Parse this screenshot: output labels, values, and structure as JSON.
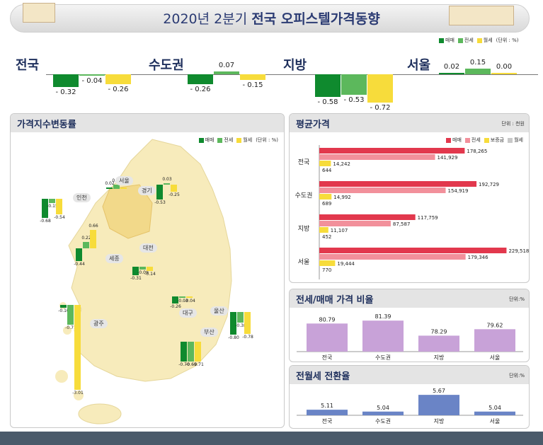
{
  "header": {
    "title_prefix": "2020년 2분기 ",
    "title_bold": "전국 오피스텔가격동향"
  },
  "legend": {
    "sale": "매매",
    "jeonse": "전세",
    "wolse": "월세",
    "unit": "(단위 : %)"
  },
  "colors": {
    "sale": "#0f8a2e",
    "jeonse": "#5cb85c",
    "wolse": "#f7dc3b",
    "avg_sale": "#e2384d",
    "avg_jeonse": "#f2909b",
    "avg_deposit": "#f7dc3b",
    "avg_wolse": "#c8c8c8",
    "ratio": "#c8a2d8",
    "conv": "#6a84c6"
  },
  "summary": [
    {
      "region": "전국",
      "sale": -0.32,
      "jeonse": -0.04,
      "wolse": -0.26,
      "labels": [
        "- 0.32",
        "- 0.04",
        "- 0.26"
      ]
    },
    {
      "region": "수도권",
      "sale": -0.26,
      "jeonse": 0.07,
      "wolse": -0.15,
      "labels": [
        "- 0.26",
        "0.07",
        "- 0.15"
      ]
    },
    {
      "region": "지방",
      "sale": -0.58,
      "jeonse": -0.53,
      "wolse": -0.72,
      "labels": [
        "- 0.58",
        "- 0.53",
        "- 0.72"
      ]
    },
    {
      "region": "서울",
      "sale": 0.02,
      "jeonse": 0.15,
      "wolse": 0.0,
      "labels": [
        "0.02",
        "0.15",
        "0.00"
      ]
    }
  ],
  "map_panel": {
    "title": "가격지수변동률",
    "unit": "(단위 : %)",
    "legend": [
      "매매",
      "전세",
      "월세"
    ]
  },
  "map_regions": [
    {
      "name": "서울",
      "values": [
        0.02,
        0.15,
        0.0
      ],
      "labels": [
        "0.02",
        "0.15",
        "0.00"
      ]
    },
    {
      "name": "인천",
      "values": [
        -0.68,
        -0.15,
        -0.54
      ],
      "labels": [
        "-0.68",
        "-0.15",
        "-0.54"
      ]
    },
    {
      "name": "경기",
      "values": [
        -0.53,
        0.03,
        -0.25
      ],
      "labels": [
        "-0.53",
        "0.03",
        "-0.25"
      ]
    },
    {
      "name": "세종",
      "values": [
        -0.44,
        0.22,
        0.66
      ],
      "labels": [
        "-0.44",
        "0.22",
        "0.66"
      ]
    },
    {
      "name": "대전",
      "values": [
        -0.31,
        -0.09,
        -0.14
      ],
      "labels": [
        "-0.31",
        "-0.09",
        "-0.14"
      ]
    },
    {
      "name": "대구",
      "values": [
        -0.26,
        -0.03,
        -0.04
      ],
      "labels": [
        "-0.26",
        "-0.03",
        "-0.04"
      ]
    },
    {
      "name": "광주",
      "values": [
        -0.1,
        -0.71,
        -3.01
      ],
      "labels": [
        "-0.10",
        "-0.71",
        "-3.01"
      ]
    },
    {
      "name": "울산",
      "values": [
        -0.8,
        -0.38,
        -0.78
      ],
      "labels": [
        "-0.80",
        "-0.38",
        "-0.78"
      ]
    },
    {
      "name": "부산",
      "values": [
        -0.7,
        -0.69,
        -0.71
      ],
      "labels": [
        "-0.70",
        "-0.69",
        "-0.71"
      ]
    }
  ],
  "avg_panel": {
    "title": "평균가격",
    "unit": "단위 : 천원",
    "legend": [
      "매매",
      "전세",
      "보증금",
      "월세"
    ]
  },
  "chart_data": [
    {
      "type": "bar",
      "title": "평균가격",
      "categories": [
        "전국",
        "수도권",
        "지방",
        "서울"
      ],
      "series": [
        {
          "name": "매매",
          "values": [
            178265,
            192729,
            117759,
            229518
          ],
          "labels": [
            "178,265",
            "192,729",
            "117,759",
            "229,518"
          ]
        },
        {
          "name": "전세",
          "values": [
            141929,
            154919,
            87587,
            179346
          ],
          "labels": [
            "141,929",
            "154,919",
            "87,587",
            "179,346"
          ]
        },
        {
          "name": "보증금",
          "values": [
            14242,
            14992,
            11107,
            19444
          ],
          "labels": [
            "14,242",
            "14,992",
            "11,107",
            "19,444"
          ]
        },
        {
          "name": "월세",
          "values": [
            644,
            689,
            452,
            770
          ],
          "labels": [
            "644",
            "689",
            "452",
            "770"
          ]
        }
      ]
    },
    {
      "type": "bar",
      "title": "전세/매매 가격 비율",
      "unit": "단위:%",
      "categories": [
        "전국",
        "수도권",
        "지방",
        "서울"
      ],
      "values": [
        80.79,
        81.39,
        78.29,
        79.62
      ],
      "labels": [
        "80.79",
        "81.39",
        "78.29",
        "79.62"
      ]
    },
    {
      "type": "bar",
      "title": "전월세 전환율",
      "unit": "단위:%",
      "categories": [
        "전국",
        "수도권",
        "지방",
        "서울"
      ],
      "values": [
        5.11,
        5.04,
        5.67,
        5.04
      ],
      "labels": [
        "5.11",
        "5.04",
        "5.67",
        "5.04"
      ]
    }
  ]
}
